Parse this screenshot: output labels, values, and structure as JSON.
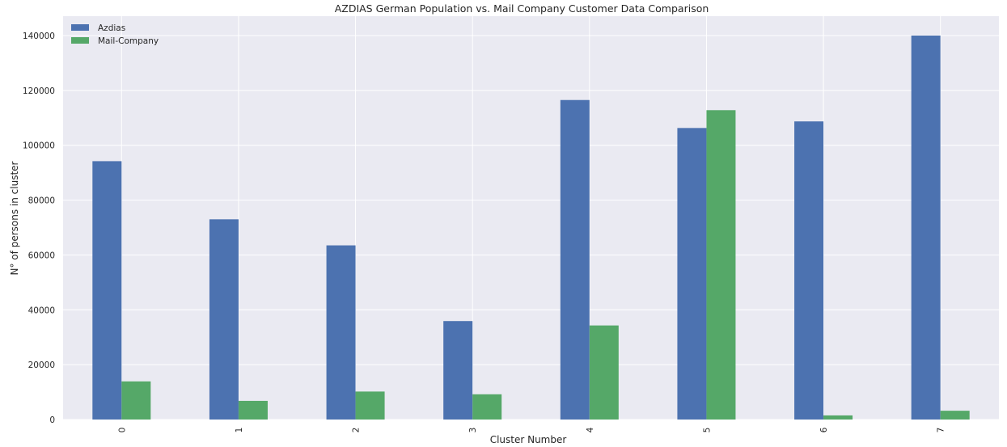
{
  "chart_data": {
    "type": "bar",
    "title": "AZDIAS German Population vs. Mail Company Customer Data Comparison",
    "xlabel": "Cluster Number",
    "ylabel": "N° of persons in cluster",
    "categories": [
      "0",
      "1",
      "2",
      "3",
      "4",
      "5",
      "6",
      "7"
    ],
    "series": [
      {
        "name": "Azdias",
        "color": "#4C72B0",
        "values": [
          94200,
          73000,
          63500,
          35900,
          116500,
          106300,
          108700,
          140000
        ]
      },
      {
        "name": "Mail-Company",
        "color": "#55A868",
        "values": [
          13900,
          6800,
          10200,
          9200,
          34300,
          112800,
          1500,
          3200
        ]
      }
    ],
    "ylim": [
      0,
      140000
    ],
    "yticks": [
      0,
      20000,
      40000,
      60000,
      80000,
      100000,
      120000,
      140000
    ],
    "grid": true,
    "background": "#EAEAF2",
    "legend_placement": "top-left"
  }
}
